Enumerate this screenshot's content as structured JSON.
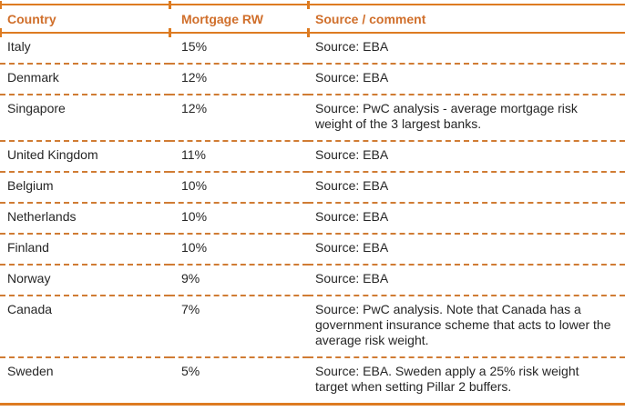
{
  "colors": {
    "accent": "#DD7B21",
    "dash": "#D07C34",
    "header_text": "#D06F2B",
    "body_text": "#262626"
  },
  "table": {
    "columns": [
      {
        "label": "Country"
      },
      {
        "label": "Mortgage RW"
      },
      {
        "label": "Source / comment"
      }
    ],
    "rows": [
      {
        "country": "Italy",
        "mortgage_rw": "15%",
        "source": "Source: EBA"
      },
      {
        "country": "Denmark",
        "mortgage_rw": "12%",
        "source": "Source: EBA"
      },
      {
        "country": "Singapore",
        "mortgage_rw": "12%",
        "source": "Source: PwC analysis - average mortgage risk weight of the 3 largest banks."
      },
      {
        "country": "United Kingdom",
        "mortgage_rw": "11%",
        "source": "Source: EBA"
      },
      {
        "country": "Belgium",
        "mortgage_rw": "10%",
        "source": "Source: EBA"
      },
      {
        "country": "Netherlands",
        "mortgage_rw": "10%",
        "source": "Source: EBA"
      },
      {
        "country": "Finland",
        "mortgage_rw": "10%",
        "source": "Source: EBA"
      },
      {
        "country": "Norway",
        "mortgage_rw": "9%",
        "source": "Source: EBA"
      },
      {
        "country": "Canada",
        "mortgage_rw": "7%",
        "source": "Source: PwC analysis. Note that Canada has a government insurance scheme that acts to lower the average risk weight."
      },
      {
        "country": "Sweden",
        "mortgage_rw": "5%",
        "source": "Source: EBA. Sweden apply a 25% risk weight target when setting Pillar 2 buffers."
      }
    ]
  }
}
